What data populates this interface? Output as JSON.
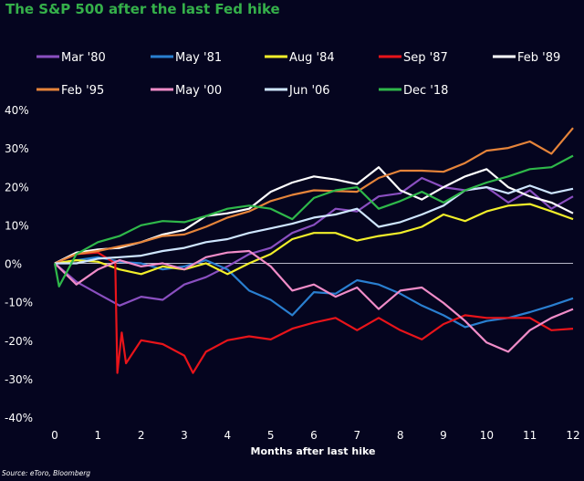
{
  "chart_data": {
    "type": "line",
    "title": "The S&P 500 after the last Fed hike",
    "xlabel": "Months after last hike",
    "ylabel": "",
    "source": "Source: eToro, Bloomberg",
    "xlim": [
      0,
      12
    ],
    "ylim": [
      -40,
      40
    ],
    "x_ticks": [
      "0",
      "1",
      "2",
      "3",
      "4",
      "5",
      "6",
      "7",
      "8",
      "9",
      "10",
      "11",
      "12"
    ],
    "y_ticks": [
      "40%",
      "30%",
      "20%",
      "10%",
      "0%",
      "-10%",
      "-20%",
      "-30%",
      "-40%"
    ],
    "grid": false,
    "zero_line": true,
    "legend_position": "top",
    "colors": {
      "background": "#05051f",
      "title": "#35b04a",
      "text": "#ffffff"
    },
    "series": [
      {
        "name": "Mar '80",
        "color": "#8a4fc0",
        "x": [
          0,
          0.5,
          1,
          1.5,
          2,
          2.5,
          3,
          3.5,
          4,
          4.5,
          5,
          5.5,
          6,
          6.5,
          7,
          7.5,
          8,
          8.5,
          9,
          9.5,
          10,
          10.5,
          11,
          11.5,
          12
        ],
        "values": [
          0,
          -4.8,
          -7.9,
          -11,
          -8.7,
          -9.5,
          -5.5,
          -3.6,
          -0.8,
          2.4,
          4,
          7.9,
          10,
          14.2,
          13.5,
          17.4,
          18.2,
          22.2,
          19.8,
          19,
          19.8,
          15.8,
          19,
          14.2,
          17.4
        ]
      },
      {
        "name": "May '81",
        "color": "#2a7fd0",
        "x": [
          0,
          0.5,
          1,
          1.5,
          2,
          2.5,
          3,
          3.5,
          4,
          4.5,
          5,
          5.5,
          6,
          6.5,
          7,
          7.5,
          8,
          8.5,
          9,
          9.5,
          10,
          10.5,
          11,
          11.5,
          12
        ],
        "values": [
          0,
          0.8,
          1.6,
          0.4,
          0,
          -1.6,
          -0.8,
          0.8,
          -1.6,
          -7.1,
          -9.5,
          -13.5,
          -7.5,
          -7.9,
          -4.4,
          -5.5,
          -7.9,
          -11,
          -13.5,
          -16.6,
          -15,
          -14.2,
          -12.7,
          -11,
          -9.1
        ]
      },
      {
        "name": "Aug '84",
        "color": "#f2ef2a",
        "x": [
          0,
          0.5,
          1,
          1.5,
          2,
          2.5,
          3,
          3.5,
          4,
          4.5,
          5,
          5.5,
          6,
          6.5,
          7,
          7.5,
          8,
          8.5,
          9,
          9.5,
          10,
          10.5,
          11,
          11.5,
          12
        ],
        "values": [
          0,
          0.8,
          0.4,
          -1.6,
          -2.8,
          -0.8,
          -1.6,
          0,
          -2.8,
          0,
          2.4,
          6.3,
          7.9,
          7.9,
          5.9,
          7.1,
          7.9,
          9.5,
          12.7,
          11,
          13.5,
          15,
          15.4,
          13.5,
          11.5
        ]
      },
      {
        "name": "Sep '87",
        "color": "#e8141a",
        "x": [
          0,
          0.5,
          1,
          1.4,
          1.45,
          1.55,
          1.65,
          2,
          2.5,
          3,
          3.2,
          3.5,
          4,
          4.5,
          5,
          5.5,
          6,
          6.5,
          7,
          7.5,
          8,
          8.5,
          9,
          9.5,
          10,
          10.5,
          11,
          11.5,
          12
        ],
        "values": [
          0,
          2.4,
          2.8,
          0,
          -28.5,
          -18,
          -26,
          -20,
          -21,
          -24,
          -28.5,
          -23,
          -20,
          -19,
          -19.8,
          -17,
          -15.4,
          -14.2,
          -17.4,
          -14.2,
          -17.4,
          -19.8,
          -15.8,
          -13.5,
          -14.2,
          -14.2,
          -14.2,
          -17.4,
          -17
        ]
      },
      {
        "name": "Feb '89",
        "color": "#ffffff",
        "x": [
          0,
          0.5,
          1,
          1.5,
          2,
          2.5,
          3,
          3.5,
          4,
          4.5,
          5,
          5.5,
          6,
          6.5,
          7,
          7.5,
          8,
          8.5,
          9,
          9.5,
          10,
          10.5,
          11,
          11.5,
          12
        ],
        "values": [
          0,
          2.8,
          3.6,
          4,
          5.5,
          7.5,
          8.7,
          12.3,
          13,
          14.2,
          18.6,
          21,
          22.6,
          21.8,
          20.6,
          25,
          19,
          16.6,
          19.8,
          22.6,
          24.5,
          19.8,
          17.4,
          15.8,
          13
        ]
      },
      {
        "name": "Feb '95",
        "color": "#e6843a",
        "x": [
          0,
          0.5,
          1,
          1.5,
          2,
          2.5,
          3,
          3.5,
          4,
          4.5,
          5,
          5.5,
          6,
          6.5,
          7,
          7.5,
          8,
          8.5,
          9,
          9.5,
          10,
          10.5,
          11,
          11.5,
          12
        ],
        "values": [
          0,
          2.4,
          3.2,
          4.4,
          5.5,
          7.1,
          7.5,
          9.5,
          11.9,
          13.5,
          16.2,
          17.8,
          19,
          18.8,
          18.6,
          22.2,
          24.1,
          24.1,
          23.8,
          26.1,
          29.3,
          30,
          31.7,
          28.5,
          35.2
        ]
      },
      {
        "name": "May '00",
        "color": "#f08cc8",
        "x": [
          0,
          0.5,
          1,
          1.5,
          2,
          2.5,
          3,
          3.5,
          4,
          4.5,
          5,
          5.5,
          6,
          6.5,
          7,
          7.5,
          8,
          8.5,
          9,
          9.5,
          10,
          10.5,
          11,
          11.5,
          12
        ],
        "values": [
          0,
          -5.5,
          -1.6,
          0.8,
          -0.8,
          0,
          -1.6,
          1.6,
          2.8,
          3.2,
          -0.8,
          -7.1,
          -5.5,
          -8.7,
          -6.3,
          -11.9,
          -7.1,
          -6.3,
          -10.3,
          -15,
          -20.6,
          -23,
          -17.4,
          -14.2,
          -11.9
        ]
      },
      {
        "name": "Jun '06",
        "color": "#cfe6ff",
        "x": [
          0,
          0.5,
          1,
          1.5,
          2,
          2.5,
          3,
          3.5,
          4,
          4.5,
          5,
          5.5,
          6,
          6.5,
          7,
          7.5,
          8,
          8.5,
          9,
          9.5,
          10,
          10.5,
          11,
          11.5,
          12
        ],
        "values": [
          0,
          0,
          1.2,
          1.6,
          2,
          3.2,
          4,
          5.5,
          6.3,
          7.9,
          9.1,
          10.3,
          11.9,
          12.7,
          14.2,
          9.5,
          10.7,
          12.7,
          15,
          19,
          19.8,
          18.2,
          20.2,
          18.2,
          19.4
        ]
      },
      {
        "name": "Dec '18",
        "color": "#2fb84a",
        "x": [
          0,
          0.1,
          0.5,
          1,
          1.5,
          2,
          2.5,
          3,
          3.5,
          4,
          4.5,
          5,
          5.5,
          6,
          6.5,
          7,
          7.5,
          8,
          8.5,
          9,
          9.5,
          10,
          10.5,
          11,
          11.5,
          12
        ],
        "values": [
          0,
          -6,
          2.4,
          5.5,
          7.1,
          9.9,
          11,
          10.7,
          12.3,
          14.2,
          15,
          14.2,
          11.5,
          17,
          19,
          19.8,
          14.2,
          16.2,
          18.6,
          15.8,
          19,
          21,
          22.6,
          24.5,
          25,
          28
        ]
      }
    ]
  }
}
